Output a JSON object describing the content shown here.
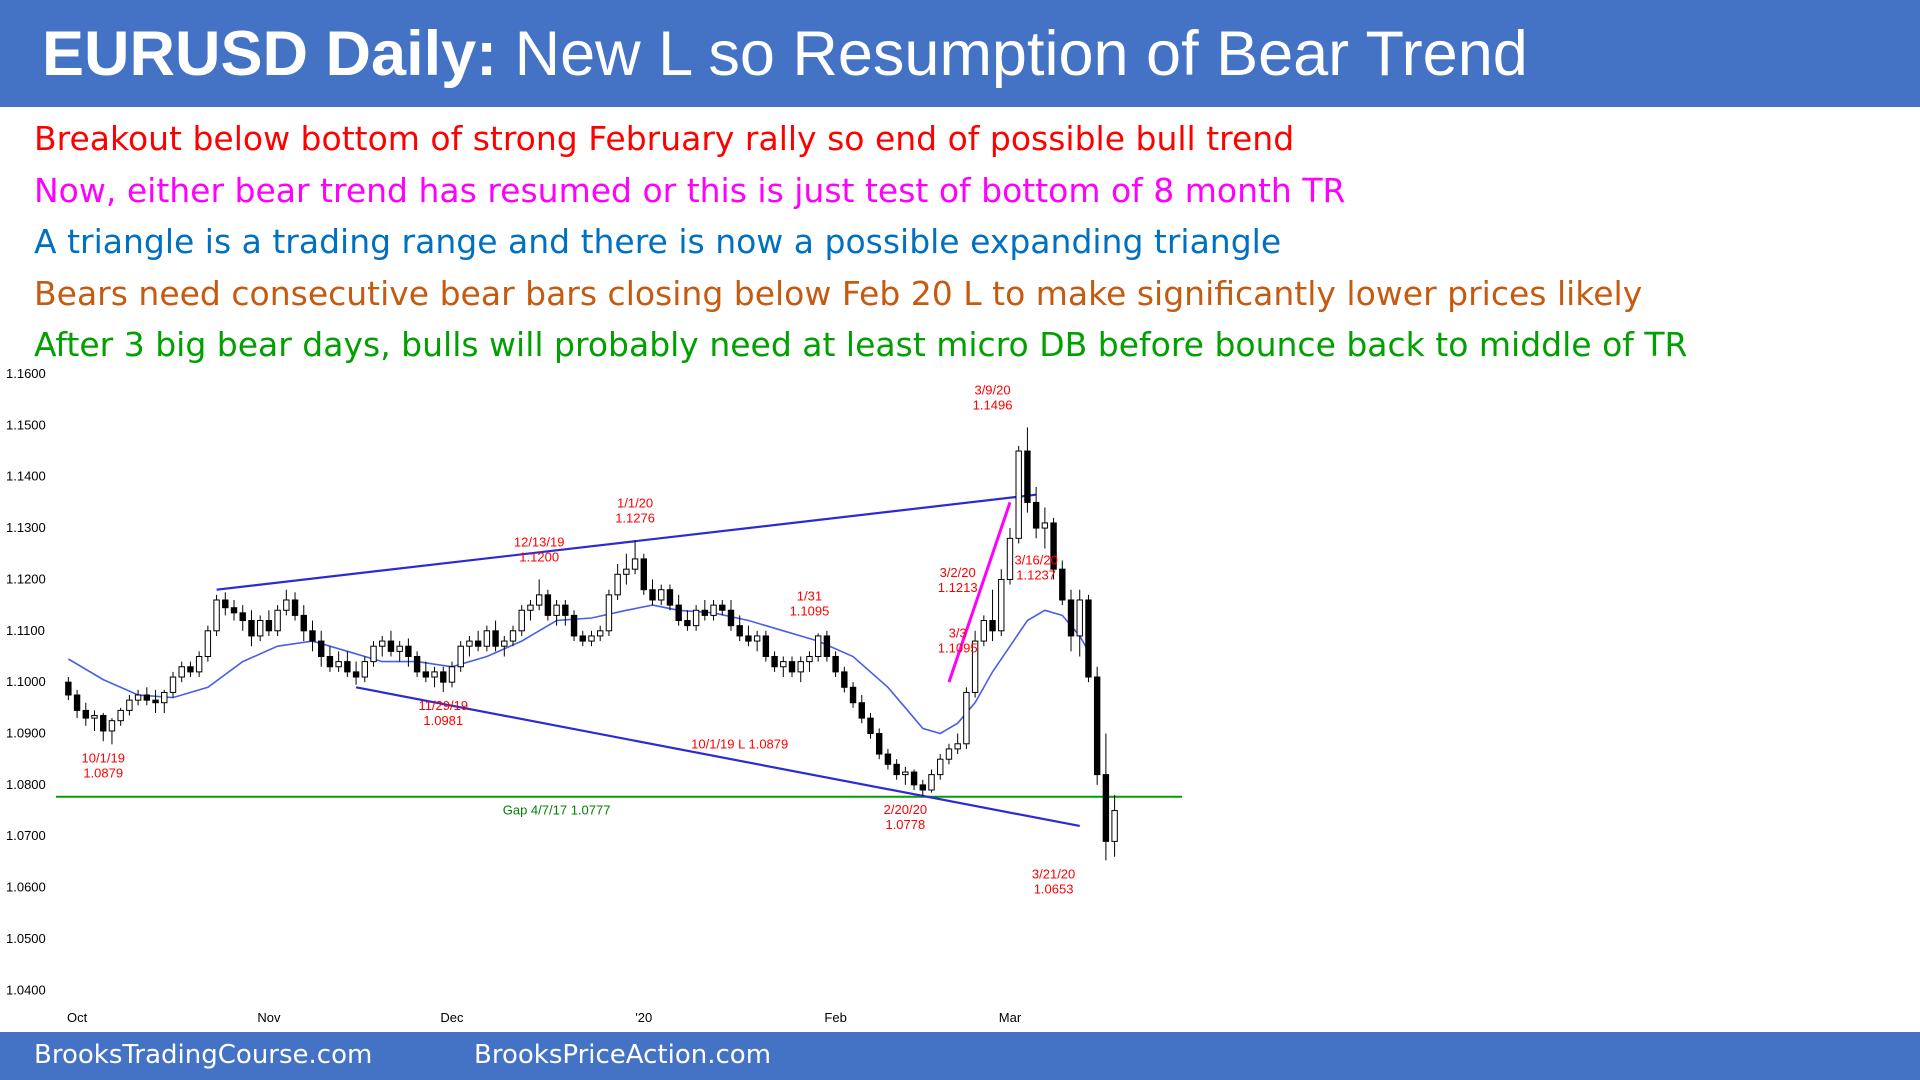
{
  "header": {
    "title_bold": "EURUSD Daily:",
    "title_rest": " New L so Resumption of Bear Trend"
  },
  "bullets": [
    {
      "text": "Breakout below bottom of strong February rally so end of possible bull trend",
      "color": "#ff0000"
    },
    {
      "text": "Now, either bear trend has resumed or this is just test of bottom of 8 month TR",
      "color": "#ff00ff"
    },
    {
      "text": "A triangle is a trading range and there is now a possible expanding triangle",
      "color": "#0070c0"
    },
    {
      "text": "Bears need consecutive bear bars closing below Feb 20 L to make significantly lower prices likely",
      "color": "#c55a11"
    },
    {
      "text": "After 3 big bear days, bulls will probably need at least micro DB before bounce back to middle of TR",
      "color": "#00a000"
    }
  ],
  "footer": {
    "left": "BrooksTradingCourse.com",
    "right": "BrooksPriceAction.com"
  },
  "chart_data": {
    "type": "candlestick",
    "ylim": [
      1.035,
      1.16
    ],
    "y_ticks": [
      "1.1600",
      "1.1500",
      "1.1400",
      "1.1300",
      "1.1200",
      "1.1100",
      "1.1000",
      "1.0900",
      "1.0800",
      "1.0700",
      "1.0600",
      "1.0500",
      "1.0400"
    ],
    "x_ticks": [
      {
        "label": "Oct",
        "bar": 1
      },
      {
        "label": "Nov",
        "bar": 23
      },
      {
        "label": "Dec",
        "bar": 44
      },
      {
        "label": "'20",
        "bar": 66
      },
      {
        "label": "Feb",
        "bar": 88
      },
      {
        "label": "Mar",
        "bar": 108
      }
    ],
    "n_slots": 128,
    "series_colors": {
      "ma": "#4a5fe8",
      "trendline": "#2b2bd6",
      "gap": "#00a000",
      "spike": "#ff00ff",
      "label": "#ff0000",
      "gap_label": "#008000"
    },
    "ohlc": [
      [
        1.1,
        1.101,
        1.0965,
        1.0975
      ],
      [
        1.0975,
        1.0985,
        1.093,
        1.0945
      ],
      [
        1.0945,
        1.096,
        1.0915,
        1.093
      ],
      [
        1.093,
        1.0945,
        1.0905,
        1.0935
      ],
      [
        1.0935,
        1.094,
        1.0885,
        1.0905
      ],
      [
        1.0905,
        1.093,
        1.0879,
        1.0925
      ],
      [
        1.0925,
        1.095,
        1.0915,
        1.0945
      ],
      [
        1.0945,
        1.0975,
        1.0935,
        1.0965
      ],
      [
        1.0965,
        1.0985,
        1.0955,
        1.0975
      ],
      [
        1.0975,
        1.099,
        1.0955,
        1.0965
      ],
      [
        1.0965,
        1.0985,
        1.094,
        1.096
      ],
      [
        1.096,
        1.0985,
        1.094,
        1.098
      ],
      [
        1.098,
        1.102,
        1.097,
        1.101
      ],
      [
        1.101,
        1.104,
        1.1,
        1.103
      ],
      [
        1.103,
        1.104,
        1.101,
        1.102
      ],
      [
        1.102,
        1.106,
        1.101,
        1.105
      ],
      [
        1.105,
        1.111,
        1.104,
        1.11
      ],
      [
        1.11,
        1.117,
        1.109,
        1.116
      ],
      [
        1.116,
        1.1175,
        1.113,
        1.1145
      ],
      [
        1.1145,
        1.116,
        1.112,
        1.1135
      ],
      [
        1.1135,
        1.115,
        1.11,
        1.112
      ],
      [
        1.112,
        1.114,
        1.107,
        1.109
      ],
      [
        1.109,
        1.113,
        1.108,
        1.112
      ],
      [
        1.112,
        1.114,
        1.109,
        1.11
      ],
      [
        1.11,
        1.115,
        1.109,
        1.114
      ],
      [
        1.114,
        1.118,
        1.113,
        1.116
      ],
      [
        1.116,
        1.1175,
        1.112,
        1.113
      ],
      [
        1.113,
        1.115,
        1.108,
        1.11
      ],
      [
        1.11,
        1.112,
        1.106,
        1.108
      ],
      [
        1.108,
        1.11,
        1.103,
        1.105
      ],
      [
        1.105,
        1.107,
        1.102,
        1.103
      ],
      [
        1.103,
        1.106,
        1.102,
        1.104
      ],
      [
        1.104,
        1.106,
        1.101,
        1.102
      ],
      [
        1.102,
        1.104,
        1.0995,
        1.101
      ],
      [
        1.101,
        1.105,
        1.1,
        1.104
      ],
      [
        1.104,
        1.108,
        1.103,
        1.107
      ],
      [
        1.107,
        1.109,
        1.105,
        1.108
      ],
      [
        1.108,
        1.11,
        1.105,
        1.106
      ],
      [
        1.106,
        1.108,
        1.104,
        1.107
      ],
      [
        1.107,
        1.1085,
        1.103,
        1.105
      ],
      [
        1.105,
        1.106,
        1.101,
        1.102
      ],
      [
        1.102,
        1.104,
        1.1,
        1.101
      ],
      [
        1.101,
        1.103,
        1.099,
        1.102
      ],
      [
        1.102,
        1.103,
        1.0981,
        1.1
      ],
      [
        1.1,
        1.104,
        1.099,
        1.103
      ],
      [
        1.103,
        1.108,
        1.102,
        1.107
      ],
      [
        1.107,
        1.109,
        1.105,
        1.108
      ],
      [
        1.108,
        1.11,
        1.106,
        1.107
      ],
      [
        1.107,
        1.111,
        1.106,
        1.11
      ],
      [
        1.11,
        1.112,
        1.106,
        1.107
      ],
      [
        1.107,
        1.109,
        1.105,
        1.108
      ],
      [
        1.108,
        1.111,
        1.107,
        1.11
      ],
      [
        1.11,
        1.115,
        1.109,
        1.114
      ],
      [
        1.114,
        1.116,
        1.112,
        1.115
      ],
      [
        1.115,
        1.12,
        1.114,
        1.117
      ],
      [
        1.117,
        1.118,
        1.112,
        1.113
      ],
      [
        1.113,
        1.116,
        1.111,
        1.115
      ],
      [
        1.115,
        1.116,
        1.111,
        1.113
      ],
      [
        1.113,
        1.114,
        1.108,
        1.109
      ],
      [
        1.109,
        1.11,
        1.107,
        1.108
      ],
      [
        1.108,
        1.11,
        1.107,
        1.109
      ],
      [
        1.109,
        1.111,
        1.108,
        1.11
      ],
      [
        1.11,
        1.118,
        1.109,
        1.117
      ],
      [
        1.117,
        1.123,
        1.116,
        1.121
      ],
      [
        1.121,
        1.125,
        1.119,
        1.122
      ],
      [
        1.122,
        1.1276,
        1.121,
        1.124
      ],
      [
        1.124,
        1.125,
        1.117,
        1.118
      ],
      [
        1.118,
        1.12,
        1.115,
        1.116
      ],
      [
        1.116,
        1.119,
        1.115,
        1.118
      ],
      [
        1.118,
        1.119,
        1.114,
        1.115
      ],
      [
        1.115,
        1.117,
        1.111,
        1.112
      ],
      [
        1.112,
        1.114,
        1.11,
        1.111
      ],
      [
        1.111,
        1.115,
        1.11,
        1.114
      ],
      [
        1.114,
        1.116,
        1.112,
        1.113
      ],
      [
        1.113,
        1.116,
        1.112,
        1.115
      ],
      [
        1.115,
        1.116,
        1.113,
        1.114
      ],
      [
        1.114,
        1.116,
        1.11,
        1.111
      ],
      [
        1.111,
        1.113,
        1.108,
        1.109
      ],
      [
        1.109,
        1.111,
        1.107,
        1.108
      ],
      [
        1.108,
        1.11,
        1.106,
        1.109
      ],
      [
        1.109,
        1.11,
        1.104,
        1.105
      ],
      [
        1.105,
        1.106,
        1.102,
        1.103
      ],
      [
        1.103,
        1.105,
        1.101,
        1.104
      ],
      [
        1.104,
        1.105,
        1.101,
        1.102
      ],
      [
        1.102,
        1.105,
        1.1,
        1.104
      ],
      [
        1.104,
        1.106,
        1.102,
        1.105
      ],
      [
        1.105,
        1.1095,
        1.104,
        1.109
      ],
      [
        1.109,
        1.11,
        1.104,
        1.105
      ],
      [
        1.105,
        1.106,
        1.101,
        1.102
      ],
      [
        1.102,
        1.103,
        1.098,
        1.099
      ],
      [
        1.099,
        1.1,
        1.095,
        1.096
      ],
      [
        1.096,
        1.0975,
        1.092,
        1.093
      ],
      [
        1.093,
        1.094,
        1.089,
        1.09
      ],
      [
        1.09,
        1.091,
        1.085,
        1.086
      ],
      [
        1.086,
        1.087,
        1.083,
        1.084
      ],
      [
        1.084,
        1.085,
        1.081,
        1.082
      ],
      [
        1.082,
        1.0835,
        1.08,
        1.0825
      ],
      [
        1.0825,
        1.083,
        1.079,
        1.08
      ],
      [
        1.08,
        1.081,
        1.0778,
        1.079
      ],
      [
        1.079,
        1.083,
        1.0785,
        1.082
      ],
      [
        1.082,
        1.086,
        1.081,
        1.085
      ],
      [
        1.085,
        1.088,
        1.084,
        1.087
      ],
      [
        1.087,
        1.09,
        1.086,
        1.088
      ],
      [
        1.088,
        1.099,
        1.087,
        1.098
      ],
      [
        1.098,
        1.11,
        1.097,
        1.108
      ],
      [
        1.108,
        1.113,
        1.107,
        1.112
      ],
      [
        1.112,
        1.118,
        1.108,
        1.11
      ],
      [
        1.11,
        1.122,
        1.109,
        1.12
      ],
      [
        1.12,
        1.13,
        1.119,
        1.128
      ],
      [
        1.128,
        1.146,
        1.127,
        1.145
      ],
      [
        1.145,
        1.1496,
        1.133,
        1.135
      ],
      [
        1.135,
        1.138,
        1.128,
        1.13
      ],
      [
        1.13,
        1.134,
        1.126,
        1.131
      ],
      [
        1.131,
        1.132,
        1.12,
        1.122
      ],
      [
        1.122,
        1.1237,
        1.115,
        1.116
      ],
      [
        1.116,
        1.118,
        1.106,
        1.109
      ],
      [
        1.109,
        1.118,
        1.105,
        1.116
      ],
      [
        1.116,
        1.117,
        1.1,
        1.101
      ],
      [
        1.101,
        1.103,
        1.08,
        1.082
      ],
      [
        1.082,
        1.09,
        1.0653,
        1.069
      ],
      [
        1.069,
        1.078,
        1.066,
        1.075
      ]
    ],
    "moving_average": [
      [
        0,
        1.1045
      ],
      [
        4,
        1.1005
      ],
      [
        8,
        1.0975
      ],
      [
        12,
        1.097
      ],
      [
        16,
        1.099
      ],
      [
        20,
        1.104
      ],
      [
        24,
        1.107
      ],
      [
        28,
        1.108
      ],
      [
        32,
        1.106
      ],
      [
        36,
        1.104
      ],
      [
        40,
        1.104
      ],
      [
        44,
        1.103
      ],
      [
        48,
        1.105
      ],
      [
        52,
        1.108
      ],
      [
        56,
        1.112
      ],
      [
        60,
        1.1125
      ],
      [
        64,
        1.114
      ],
      [
        67,
        1.115
      ],
      [
        70,
        1.114
      ],
      [
        74,
        1.1135
      ],
      [
        78,
        1.112
      ],
      [
        82,
        1.11
      ],
      [
        86,
        1.108
      ],
      [
        90,
        1.105
      ],
      [
        94,
        1.099
      ],
      [
        96,
        1.095
      ],
      [
        98,
        1.091
      ],
      [
        100,
        1.09
      ],
      [
        102,
        1.092
      ],
      [
        104,
        1.096
      ],
      [
        106,
        1.102
      ],
      [
        108,
        1.107
      ],
      [
        110,
        1.112
      ],
      [
        112,
        1.114
      ],
      [
        114,
        1.113
      ],
      [
        116,
        1.109
      ],
      [
        117,
        1.106
      ]
    ],
    "trendlines": [
      {
        "from": [
          17,
          1.118
        ],
        "to": [
          111,
          1.1365
        ],
        "kind": "upper"
      },
      {
        "from": [
          33,
          1.099
        ],
        "to": [
          116,
          1.072
        ],
        "kind": "lower"
      }
    ],
    "spike_line": {
      "from": [
        101,
        1.1
      ],
      "to": [
        108,
        1.135
      ]
    },
    "gap_line": {
      "value": 1.0777,
      "label": "Gap 4/7/17 1.0777",
      "label_bar": 56
    },
    "annotations": [
      {
        "bar": 4,
        "value": 1.0879,
        "lines": [
          "10/1/19",
          "1.0879"
        ],
        "pos": "below"
      },
      {
        "bar": 43,
        "value": 1.0981,
        "lines": [
          "11/29/19",
          "1.0981"
        ],
        "pos": "below"
      },
      {
        "bar": 54,
        "value": 1.12,
        "lines": [
          "12/13/19",
          "1.1200"
        ],
        "pos": "above"
      },
      {
        "bar": 65,
        "value": 1.1276,
        "lines": [
          "1/1/20",
          "1.1276"
        ],
        "pos": "above"
      },
      {
        "bar": 85,
        "value": 1.1095,
        "lines": [
          "1/31",
          "1.1095"
        ],
        "pos": "above"
      },
      {
        "bar": 77,
        "value": 1.0879,
        "lines": [
          "10/1/19 L 1.0879"
        ],
        "pos": "at"
      },
      {
        "bar": 96,
        "value": 1.0778,
        "lines": [
          "2/20/20",
          "1.0778"
        ],
        "pos": "below"
      },
      {
        "bar": 102,
        "value": 1.1095,
        "lines": [
          "3/3",
          "1.1095"
        ],
        "pos": "at"
      },
      {
        "bar": 102,
        "value": 1.1213,
        "lines": [
          "3/2/20",
          "1.1213"
        ],
        "pos": "at"
      },
      {
        "bar": 106,
        "value": 1.1496,
        "lines": [
          "3/9/20",
          "1.1496"
        ],
        "pos": "above"
      },
      {
        "bar": 111,
        "value": 1.1237,
        "lines": [
          "3/16/20",
          "1.1237"
        ],
        "pos": "at"
      },
      {
        "bar": 113,
        "value": 1.0653,
        "lines": [
          "3/21/20",
          "1.0653"
        ],
        "pos": "below"
      }
    ]
  }
}
